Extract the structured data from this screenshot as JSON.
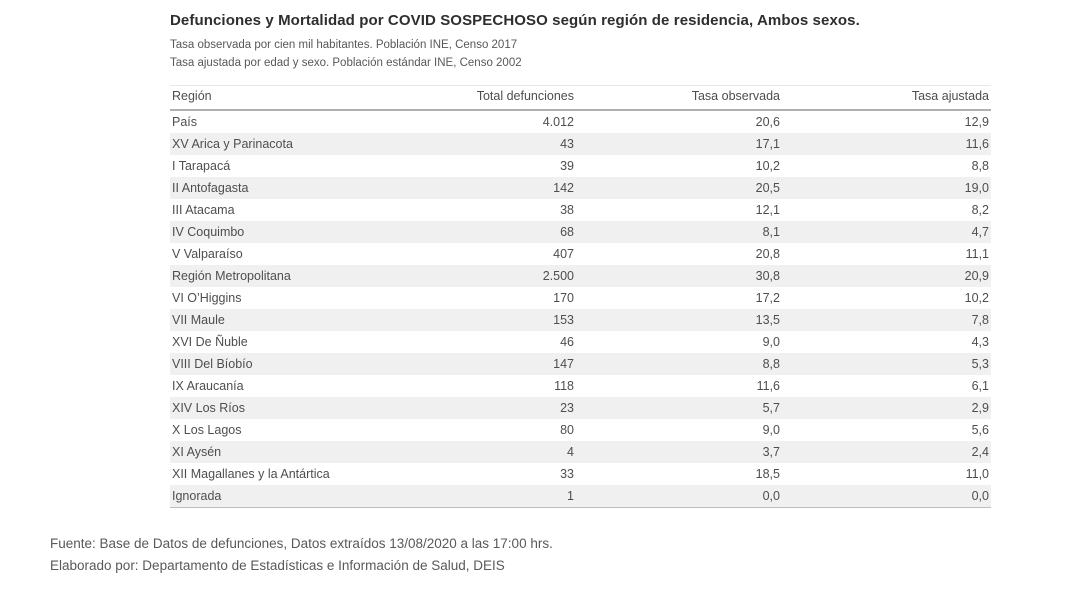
{
  "header": {
    "title": "Defunciones y Mortalidad por COVID SOSPECHOSO según región de residencia, Ambos sexos.",
    "subtitle_line1": "Tasa observada por cien mil habitantes. Población INE, Censo 2017",
    "subtitle_line2": "Tasa ajustada por edad y sexo. Población estándar INE, Censo 2002"
  },
  "table": {
    "columns": [
      "Región",
      "Total defunciones",
      "Tasa observada",
      "Tasa ajustada"
    ],
    "rows": [
      [
        "País",
        "4.012",
        "20,6",
        "12,9"
      ],
      [
        "XV Arica y Parinacota",
        "43",
        "17,1",
        "11,6"
      ],
      [
        "I Tarapacá",
        "39",
        "10,2",
        "8,8"
      ],
      [
        "II Antofagasta",
        "142",
        "20,5",
        "19,0"
      ],
      [
        "III Atacama",
        "38",
        "12,1",
        "8,2"
      ],
      [
        "IV Coquimbo",
        "68",
        "8,1",
        "4,7"
      ],
      [
        "V Valparaíso",
        "407",
        "20,8",
        "11,1"
      ],
      [
        "Región Metropolitana",
        "2.500",
        "30,8",
        "20,9"
      ],
      [
        "VI O’Higgins",
        "170",
        "17,2",
        "10,2"
      ],
      [
        "VII Maule",
        "153",
        "13,5",
        "7,8"
      ],
      [
        "XVI De Ñuble",
        "46",
        "9,0",
        "4,3"
      ],
      [
        "VIII Del Bíobío",
        "147",
        "8,8",
        "5,3"
      ],
      [
        "IX Araucanía",
        "118",
        "11,6",
        "6,1"
      ],
      [
        "XIV Los Ríos",
        "23",
        "5,7",
        "2,9"
      ],
      [
        "X Los Lagos",
        "80",
        "9,0",
        "5,6"
      ],
      [
        "XI Aysén",
        "4",
        "3,7",
        "2,4"
      ],
      [
        "XII Magallanes y la Antártica",
        "33",
        "18,5",
        "11,0"
      ],
      [
        "Ignorada",
        "1",
        "0,0",
        "0,0"
      ]
    ]
  },
  "footer": {
    "line1": "Fuente: Base de Datos de defunciones, Datos extraídos 13/08/2020 a las 17:00 hrs.",
    "line2": "Elaborado por: Departamento de Estadísticas e Información de Salud, DEIS"
  },
  "colors": {
    "row_stripe": "#f0f0f0",
    "table_text": "#4e4e4e",
    "title_text": "#2e2e2e",
    "subtitle_text": "#585858",
    "footer_text": "#595959",
    "header_rule": "#b0b0b0"
  },
  "chart_data": {
    "type": "table",
    "title": "Defunciones y Mortalidad por COVID SOSPECHOSO según región de residencia, Ambos sexos.",
    "notes": [
      "Tasa observada por cien mil habitantes. Población INE, Censo 2017",
      "Tasa ajustada por edad y sexo. Población estándar INE, Censo 2002"
    ],
    "columns": [
      "Región",
      "Total defunciones",
      "Tasa observada",
      "Tasa ajustada"
    ],
    "rows": [
      {
        "region": "País",
        "total_defunciones": 4012,
        "tasa_observada": 20.6,
        "tasa_ajustada": 12.9
      },
      {
        "region": "XV Arica y Parinacota",
        "total_defunciones": 43,
        "tasa_observada": 17.1,
        "tasa_ajustada": 11.6
      },
      {
        "region": "I Tarapacá",
        "total_defunciones": 39,
        "tasa_observada": 10.2,
        "tasa_ajustada": 8.8
      },
      {
        "region": "II Antofagasta",
        "total_defunciones": 142,
        "tasa_observada": 20.5,
        "tasa_ajustada": 19.0
      },
      {
        "region": "III Atacama",
        "total_defunciones": 38,
        "tasa_observada": 12.1,
        "tasa_ajustada": 8.2
      },
      {
        "region": "IV Coquimbo",
        "total_defunciones": 68,
        "tasa_observada": 8.1,
        "tasa_ajustada": 4.7
      },
      {
        "region": "V Valparaíso",
        "total_defunciones": 407,
        "tasa_observada": 20.8,
        "tasa_ajustada": 11.1
      },
      {
        "region": "Región Metropolitana",
        "total_defunciones": 2500,
        "tasa_observada": 30.8,
        "tasa_ajustada": 20.9
      },
      {
        "region": "VI O’Higgins",
        "total_defunciones": 170,
        "tasa_observada": 17.2,
        "tasa_ajustada": 10.2
      },
      {
        "region": "VII Maule",
        "total_defunciones": 153,
        "tasa_observada": 13.5,
        "tasa_ajustada": 7.8
      },
      {
        "region": "XVI De Ñuble",
        "total_defunciones": 46,
        "tasa_observada": 9.0,
        "tasa_ajustada": 4.3
      },
      {
        "region": "VIII Del Bíobío",
        "total_defunciones": 147,
        "tasa_observada": 8.8,
        "tasa_ajustada": 5.3
      },
      {
        "region": "IX Araucanía",
        "total_defunciones": 118,
        "tasa_observada": 11.6,
        "tasa_ajustada": 6.1
      },
      {
        "region": "XIV Los Ríos",
        "total_defunciones": 23,
        "tasa_observada": 5.7,
        "tasa_ajustada": 2.9
      },
      {
        "region": "X Los Lagos",
        "total_defunciones": 80,
        "tasa_observada": 9.0,
        "tasa_ajustada": 5.6
      },
      {
        "region": "XI Aysén",
        "total_defunciones": 4,
        "tasa_observada": 3.7,
        "tasa_ajustada": 2.4
      },
      {
        "region": "XII Magallanes y la Antártica",
        "total_defunciones": 33,
        "tasa_observada": 18.5,
        "tasa_ajustada": 11.0
      },
      {
        "region": "Ignorada",
        "total_defunciones": 1,
        "tasa_observada": 0.0,
        "tasa_ajustada": 0.0
      }
    ],
    "source": "Fuente: Base de Datos de defunciones, Datos extraídos 13/08/2020 a las 17:00 hrs.",
    "elaborated_by": "Elaborado por: Departamento de Estadísticas e Información de Salud, DEIS",
    "layout": {
      "row_striping": true,
      "numeric_alignment": "right",
      "decimal_separator": ","
    }
  }
}
